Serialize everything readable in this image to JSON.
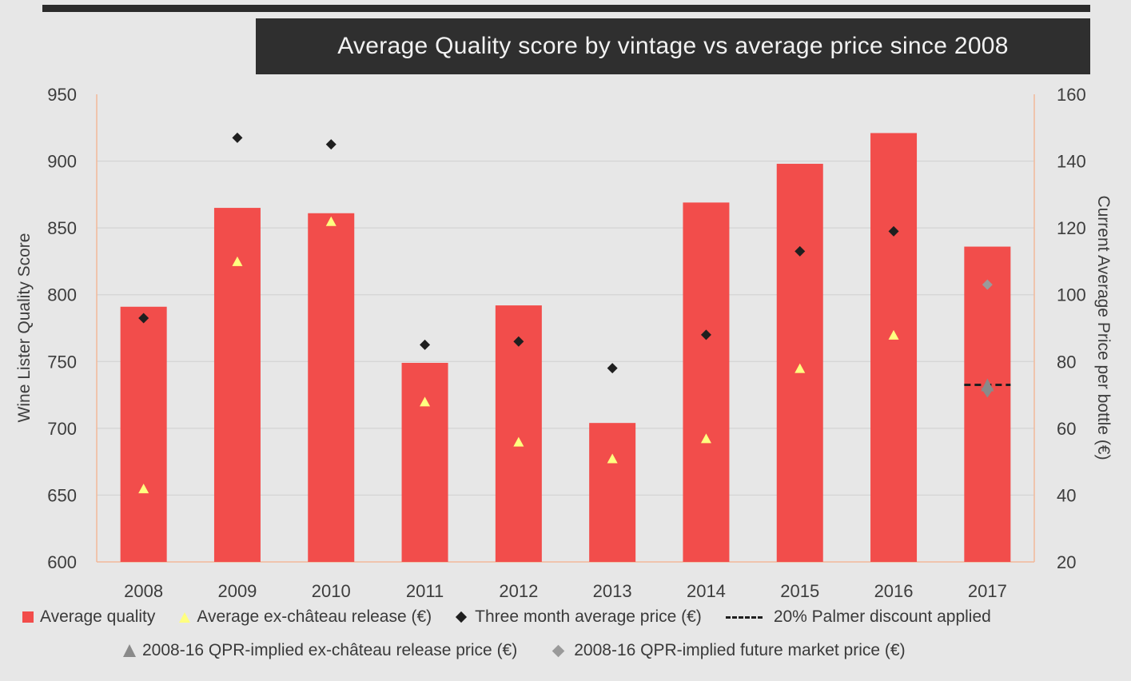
{
  "title": "Average Quality score by vintage vs average price since 2008",
  "chart_data": {
    "type": "bar",
    "title": "Average Quality score by vintage vs average price since 2008",
    "categories": [
      "2008",
      "2009",
      "2010",
      "2011",
      "2012",
      "2013",
      "2014",
      "2015",
      "2016",
      "2017"
    ],
    "ylabel": "Wine Lister Quality Score",
    "ylabel_right": "Current Average Price per bottle (€)",
    "ylim": [
      600,
      950
    ],
    "ylim_right": [
      20,
      160
    ],
    "yticks": [
      "950",
      "900",
      "850",
      "800",
      "750",
      "700",
      "650",
      "600"
    ],
    "yticks_right": [
      "160",
      "140",
      "120",
      "100",
      "80",
      "60",
      "40",
      "20"
    ],
    "grid": true,
    "legend_position": "bottom",
    "series": [
      {
        "name": "Average quality",
        "type": "bar",
        "axis": "left",
        "color": "#f24d4b",
        "values": [
          791,
          865,
          861,
          749,
          792,
          704,
          869,
          898,
          921,
          836
        ]
      },
      {
        "name": "Average ex-château release (€)",
        "type": "triangle",
        "axis": "right",
        "color": "#ffff80",
        "values": [
          42,
          110,
          122,
          68,
          56,
          51,
          57,
          78,
          88,
          null
        ]
      },
      {
        "name": "Three month average price (€)",
        "type": "diamond",
        "axis": "right",
        "color": "#1f1f1f",
        "values": [
          93,
          147,
          145,
          85,
          86,
          78,
          88,
          113,
          119,
          null
        ]
      },
      {
        "name": "20% Palmer discount applied",
        "type": "dash",
        "axis": "right",
        "color": "#1f1f1f",
        "values": [
          null,
          null,
          null,
          null,
          null,
          null,
          null,
          null,
          null,
          73
        ]
      },
      {
        "name": "2008-16 QPR-implied ex-château release price (€)",
        "type": "triangle",
        "axis": "right",
        "color": "#8a8a8a",
        "values": [
          null,
          null,
          null,
          null,
          null,
          null,
          null,
          null,
          null,
          73
        ]
      },
      {
        "name": "2008-16 QPR-implied future market price (€)",
        "type": "diamond",
        "axis": "right",
        "color": "#9a9a9a",
        "values": [
          null,
          null,
          null,
          null,
          null,
          null,
          null,
          null,
          null,
          103
        ]
      }
    ]
  }
}
